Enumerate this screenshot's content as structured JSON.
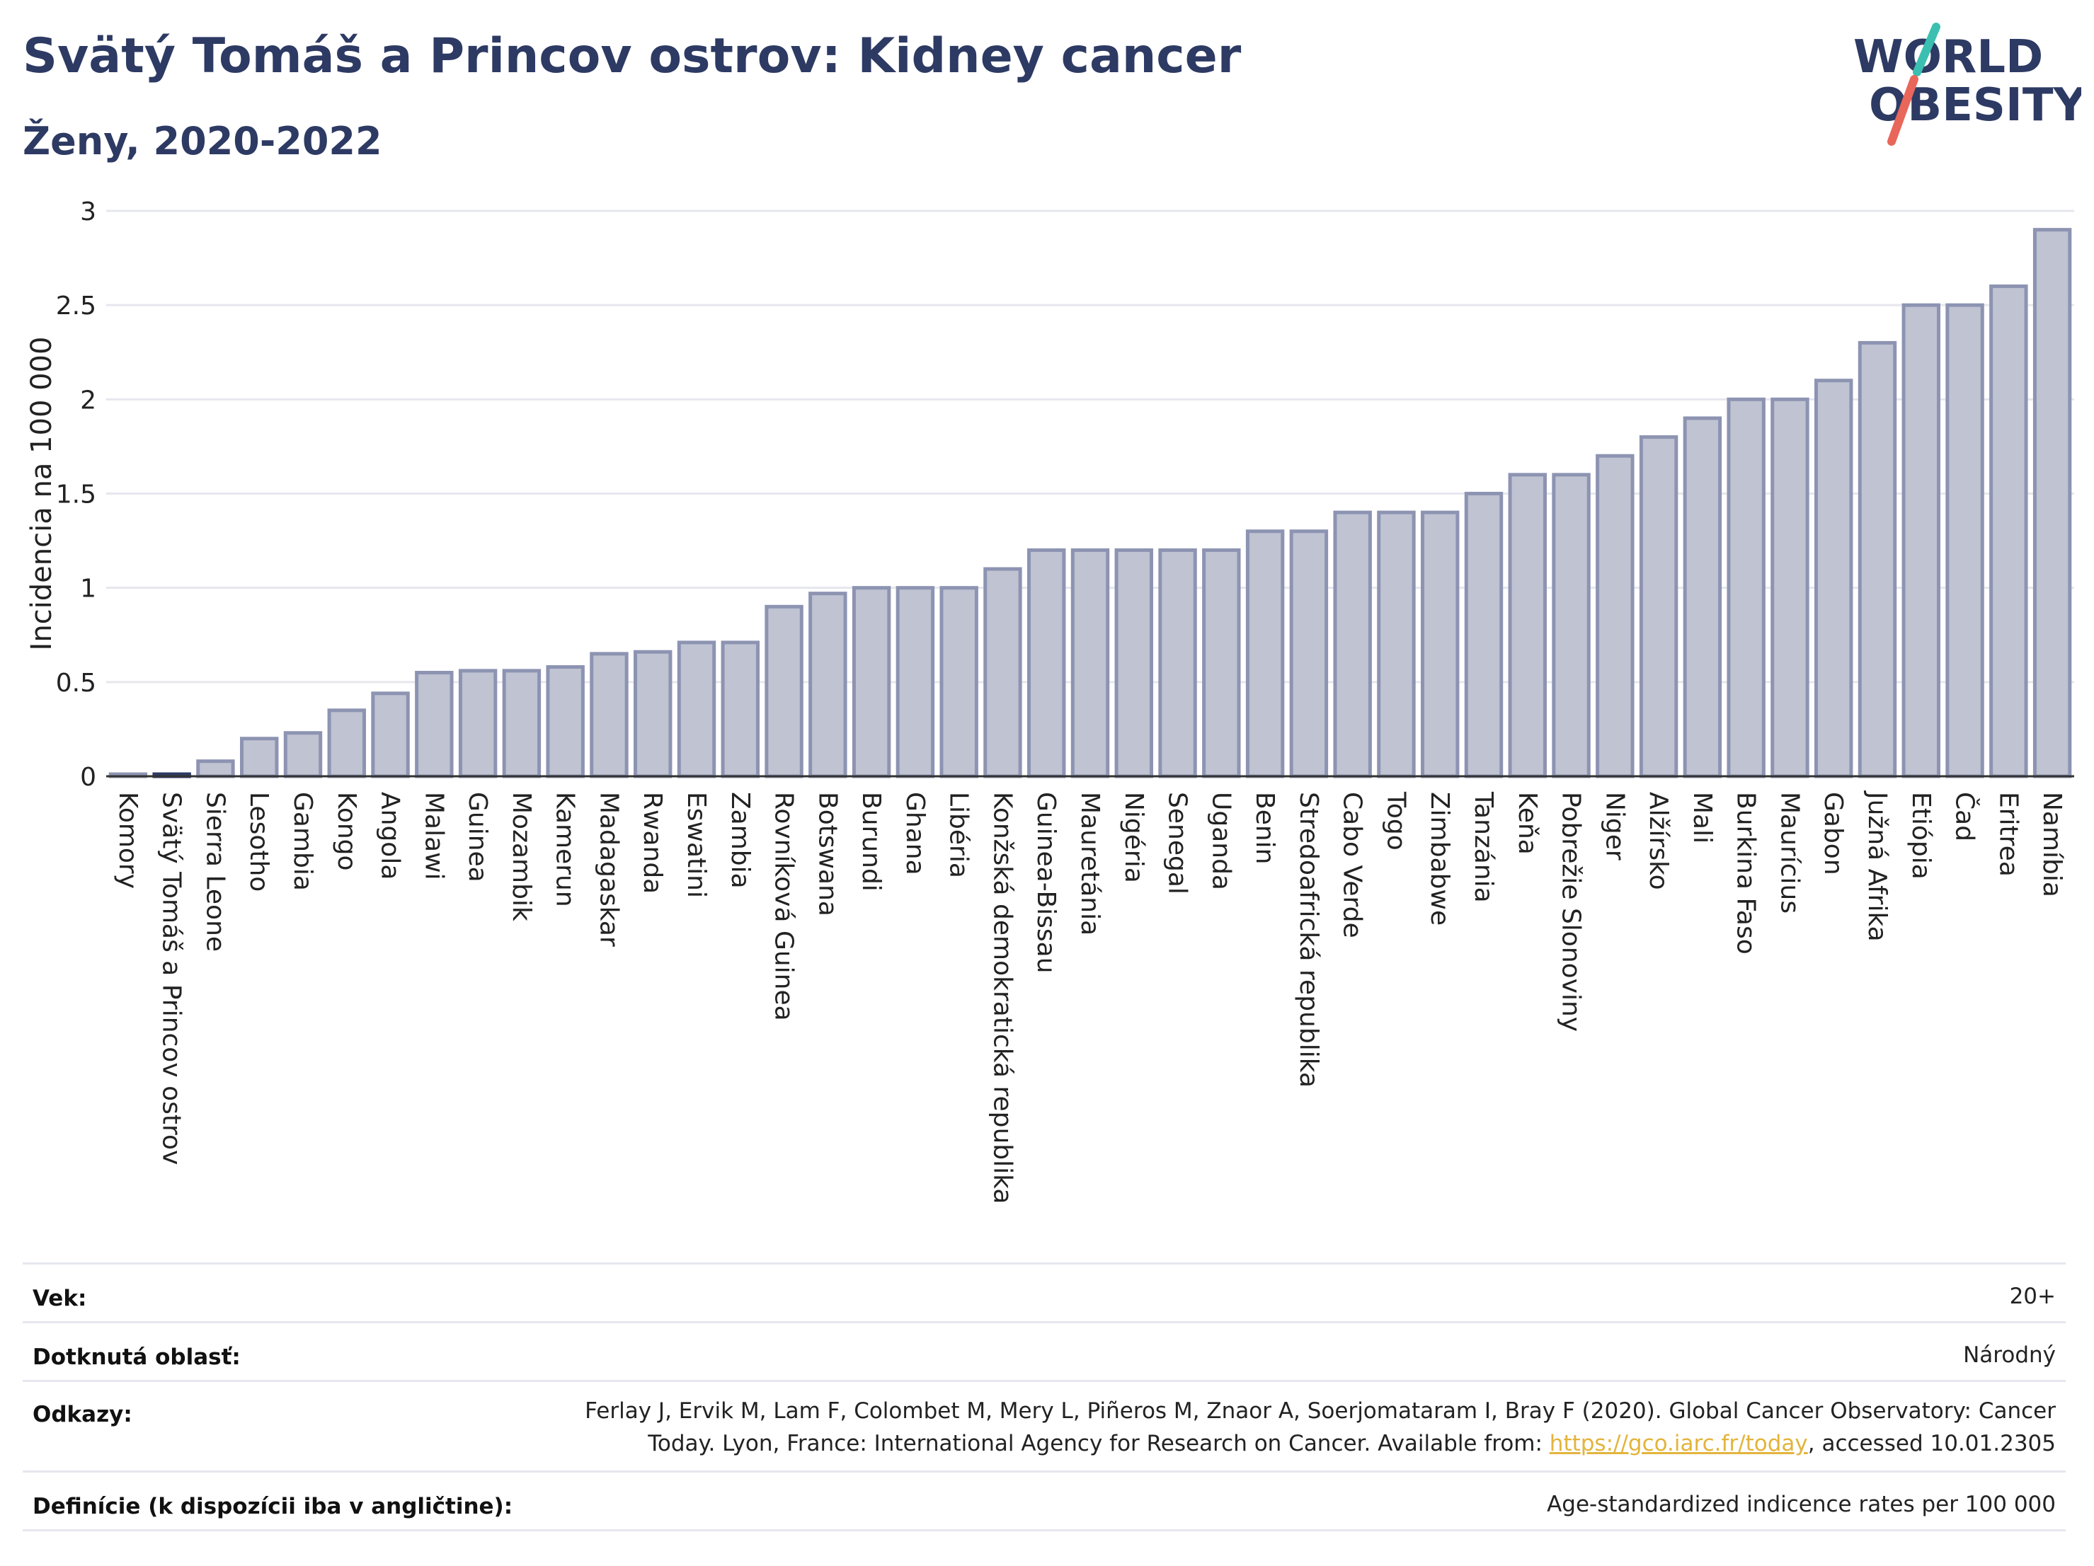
{
  "header": {
    "title": "Svätý Tomáš a Princov ostrov: Kidney cancer",
    "subtitle": "Ženy, 2020-2022"
  },
  "logo": {
    "line1": "WORLD",
    "line2": "OBESITY",
    "accent_teal": "#3bbfb0",
    "accent_coral": "#e8675a",
    "text_color": "#2d3a63"
  },
  "chart_data": {
    "type": "bar",
    "ylabel": "Incidencia na 100 000",
    "xlabel": "",
    "ylim": [
      0,
      3
    ],
    "yticks": [
      0,
      0.5,
      1,
      1.5,
      2,
      2.5,
      3
    ],
    "ytick_labels": [
      "0",
      "0.5",
      "1",
      "1.5",
      "2",
      "2.5",
      "3"
    ],
    "grid": true,
    "bar_color": "#bfc3d2",
    "bar_edge": "#8d94b2",
    "highlight_color": "#2d3a63",
    "highlight_category": "Svätý Tomáš a Princov ostrov",
    "categories": [
      "Komory",
      "Svätý Tomáš a Princov ostrov",
      "Sierra Leone",
      "Lesotho",
      "Gambia",
      "Kongo",
      "Angola",
      "Malawi",
      "Guinea",
      "Mozambik",
      "Kamerun",
      "Madagaskar",
      "Rwanda",
      "Eswatini",
      "Zambia",
      "Rovníková Guinea",
      "Botswana",
      "Burundi",
      "Ghana",
      "Libéria",
      "Konžská demokratická republika",
      "Guinea-Bissau",
      "Mauretánia",
      "Nigéria",
      "Senegal",
      "Uganda",
      "Benin",
      "Stredoafrická republika",
      "Cabo Verde",
      "Togo",
      "Zimbabwe",
      "Tanzánia",
      "Keňa",
      "Pobrežie Slonoviny",
      "Niger",
      "Alžírsko",
      "Mali",
      "Burkina Faso",
      "Maurícius",
      "Gabon",
      "Južná Afrika",
      "Etiópia",
      "Čad",
      "Eritrea",
      "Namíbia"
    ],
    "values": [
      0.01,
      0.01,
      0.08,
      0.2,
      0.23,
      0.35,
      0.44,
      0.55,
      0.56,
      0.56,
      0.58,
      0.65,
      0.66,
      0.71,
      0.71,
      0.9,
      0.97,
      1.0,
      1.0,
      1.0,
      1.1,
      1.2,
      1.2,
      1.2,
      1.2,
      1.2,
      1.3,
      1.3,
      1.4,
      1.4,
      1.4,
      1.5,
      1.6,
      1.6,
      1.7,
      1.8,
      1.9,
      2.0,
      2.0,
      2.1,
      2.3,
      2.5,
      2.5,
      2.6,
      2.9
    ]
  },
  "info": {
    "rows": [
      {
        "key": "Vek:",
        "value": "20+"
      },
      {
        "key": "Dotknutá oblasť:",
        "value": "Národný"
      },
      {
        "key": "Odkazy:",
        "value_line1": "Ferlay J, Ervik M, Lam F, Colombet M, Mery L, Piñeros M, Znaor A, Soerjomataram I, Bray F (2020). Global Cancer Observatory: Cancer",
        "value_line2_pre": "Today. Lyon, France: International Agency for Research on Cancer. Available from: ",
        "link": "https://gco.iarc.fr/today",
        "value_line2_post": ", accessed 10.01.2305"
      },
      {
        "key": "Definície (k dispozícii iba v angličtine):",
        "value": "Age-standardized indicence rates per 100 000"
      }
    ]
  }
}
